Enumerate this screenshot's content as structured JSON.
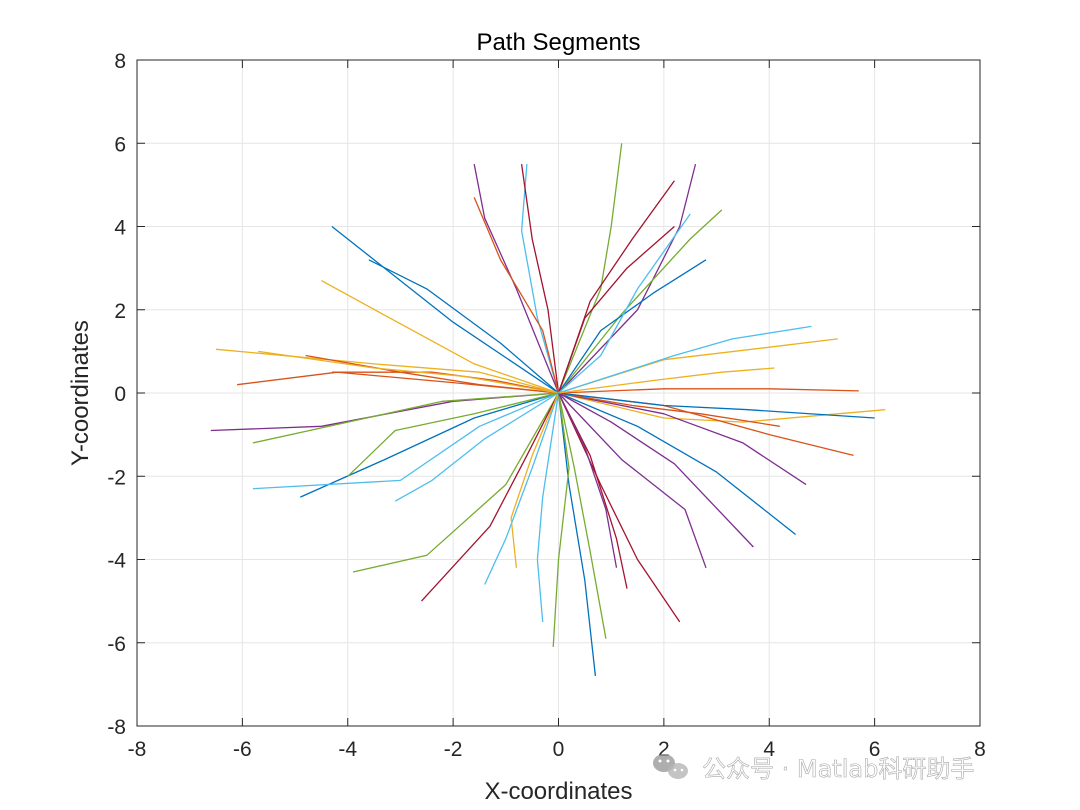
{
  "watermark": "公众号 · Matlab科研助手",
  "chart_data": {
    "type": "line",
    "title": "Path Segments",
    "xlabel": "X-coordinates",
    "ylabel": "Y-coordinates",
    "xlim": [
      -8,
      8
    ],
    "ylim": [
      -8,
      8
    ],
    "xticks": [
      "-8",
      "-6",
      "-4",
      "-2",
      "0",
      "2",
      "4",
      "6",
      "8"
    ],
    "yticks": [
      "-8",
      "-6",
      "-4",
      "-2",
      "0",
      "2",
      "4",
      "6",
      "8"
    ],
    "grid": true,
    "legend": "none",
    "colors": [
      "#0072bd",
      "#d95319",
      "#edb120",
      "#7e2f8e",
      "#77ac30",
      "#4dbeee",
      "#a2142f"
    ],
    "series": [
      {
        "x": [
          0,
          -2,
          -4.3
        ],
        "y": [
          0,
          1.7,
          4
        ]
      },
      {
        "x": [
          0,
          -1.2,
          -2.4,
          -4.3
        ],
        "y": [
          0,
          0.3,
          0.5,
          0.5
        ]
      },
      {
        "x": [
          0,
          -1.5,
          -3.5,
          -6.5
        ],
        "y": [
          0,
          0.5,
          0.7,
          1.05
        ]
      },
      {
        "x": [
          0,
          -2,
          -4.5,
          -6.6
        ],
        "y": [
          0,
          -0.2,
          -0.8,
          -0.9
        ]
      },
      {
        "x": [
          0,
          -1,
          -2.5,
          -3.9
        ],
        "y": [
          0,
          -2.2,
          -3.9,
          -4.3
        ]
      },
      {
        "x": [
          0,
          -0.5,
          -1,
          -1.4
        ],
        "y": [
          0,
          -1.8,
          -3.5,
          -4.6
        ]
      },
      {
        "x": [
          0,
          0.8,
          1.5,
          2.3
        ],
        "y": [
          0,
          -2.2,
          -4,
          -5.5
        ]
      },
      {
        "x": [
          0,
          1.5,
          3,
          4.5
        ],
        "y": [
          0,
          -0.8,
          -1.9,
          -3.4
        ]
      },
      {
        "x": [
          0,
          2,
          4,
          5.7
        ],
        "y": [
          0,
          0.1,
          0.1,
          0.05
        ]
      },
      {
        "x": [
          0,
          2,
          4,
          5.3
        ],
        "y": [
          0,
          0.8,
          1.1,
          1.3
        ]
      },
      {
        "x": [
          0,
          1.5,
          2.3,
          2.6
        ],
        "y": [
          0,
          2,
          4,
          5.5
        ]
      },
      {
        "x": [
          0,
          0.8,
          1,
          1.2
        ],
        "y": [
          0,
          2.5,
          4,
          6
        ]
      },
      {
        "x": [
          0,
          -0.4,
          -0.7,
          -0.6
        ],
        "y": [
          0,
          1.8,
          3.9,
          5.5
        ]
      },
      {
        "x": [
          0,
          0.6,
          1.1,
          1.3
        ],
        "y": [
          0,
          -1.5,
          -3.5,
          -4.7
        ]
      },
      {
        "x": [
          0,
          -1.6,
          -3.3,
          -4.9
        ],
        "y": [
          0,
          -0.6,
          -1.6,
          -2.5
        ]
      },
      {
        "x": [
          0,
          -2,
          -4.2,
          -6.1
        ],
        "y": [
          0,
          0.25,
          0.5,
          0.2
        ]
      },
      {
        "x": [
          0,
          2,
          3.5,
          6.2
        ],
        "y": [
          0,
          -0.6,
          -0.7,
          -0.4
        ]
      },
      {
        "x": [
          0,
          -0.8,
          -1.4,
          -1.6
        ],
        "y": [
          0,
          2.5,
          4.2,
          5.5
        ]
      },
      {
        "x": [
          0,
          1.2,
          2.5,
          3.1
        ],
        "y": [
          0,
          1.9,
          3.7,
          4.4
        ]
      },
      {
        "x": [
          0,
          -1.5,
          -3,
          -5.8
        ],
        "y": [
          0,
          -0.8,
          -2.1,
          -2.3
        ]
      },
      {
        "x": [
          0,
          -0.6,
          -1.3,
          -2.6
        ],
        "y": [
          0,
          -1.5,
          -3.2,
          -5
        ]
      },
      {
        "x": [
          0,
          0.8,
          1.8,
          2.8
        ],
        "y": [
          0,
          1.5,
          2.4,
          3.2
        ]
      },
      {
        "x": [
          0,
          -1.5,
          -3,
          -4.8
        ],
        "y": [
          0,
          0.2,
          0.5,
          0.9
        ]
      },
      {
        "x": [
          0,
          -1.8,
          -3.5,
          -5.7
        ],
        "y": [
          0,
          0.4,
          0.6,
          1
        ]
      },
      {
        "x": [
          0,
          2,
          3.5,
          4.7
        ],
        "y": [
          0,
          -0.5,
          -1.2,
          -2.2
        ]
      },
      {
        "x": [
          0,
          0.3,
          0.6,
          0.9
        ],
        "y": [
          0,
          -1.8,
          -3.8,
          -5.9
        ]
      },
      {
        "x": [
          0,
          -0.3,
          -0.4,
          -0.3
        ],
        "y": [
          0,
          -2.5,
          -4,
          -5.5
        ]
      },
      {
        "x": [
          0,
          0.5,
          1.3,
          2.2
        ],
        "y": [
          0,
          1.8,
          3,
          4
        ]
      },
      {
        "x": [
          0,
          -1.1,
          -2.5,
          -3.6
        ],
        "y": [
          0,
          1.2,
          2.5,
          3.2
        ]
      },
      {
        "x": [
          0,
          2,
          4,
          5.6
        ],
        "y": [
          0,
          -0.3,
          -1,
          -1.5
        ]
      },
      {
        "x": [
          0,
          -0.5,
          -0.9,
          -0.8
        ],
        "y": [
          0,
          -1.5,
          -3,
          -4.2
        ]
      },
      {
        "x": [
          0,
          1.2,
          2.4,
          2.8
        ],
        "y": [
          0,
          -1.6,
          -2.8,
          -4.2
        ]
      },
      {
        "x": [
          0,
          -2.2,
          -4,
          -5.8
        ],
        "y": [
          0,
          -0.2,
          -0.7,
          -1.2
        ]
      },
      {
        "x": [
          0,
          2.2,
          3.3,
          4.8
        ],
        "y": [
          0,
          0.9,
          1.3,
          1.6
        ]
      },
      {
        "x": [
          0,
          -0.2,
          -0.5,
          -0.7
        ],
        "y": [
          0,
          2,
          3.7,
          5.5
        ]
      },
      {
        "x": [
          0,
          0.2,
          0.5,
          0.7
        ],
        "y": [
          0,
          -2.2,
          -4.5,
          -6.8
        ]
      },
      {
        "x": [
          0,
          1.4,
          2.7,
          4.2
        ],
        "y": [
          0,
          -0.3,
          -0.5,
          -0.8
        ]
      },
      {
        "x": [
          0,
          -1.6,
          -3.2,
          -4.5
        ],
        "y": [
          0,
          0.7,
          1.8,
          2.7
        ]
      },
      {
        "x": [
          0,
          1,
          2.2,
          3.7
        ],
        "y": [
          0,
          -0.7,
          -1.7,
          -3.7
        ]
      },
      {
        "x": [
          0,
          0.2,
          0,
          -0.1
        ],
        "y": [
          0,
          -1.8,
          -4,
          -6.1
        ]
      },
      {
        "x": [
          0,
          -1.4,
          -2.4,
          -3.1
        ],
        "y": [
          0,
          -1.1,
          -2.1,
          -2.6
        ]
      },
      {
        "x": [
          0,
          0.6,
          1.4,
          2.2
        ],
        "y": [
          0,
          2.2,
          3.7,
          5.1
        ]
      },
      {
        "x": [
          0,
          2,
          3.6,
          6
        ],
        "y": [
          0,
          -0.3,
          -0.4,
          -0.6
        ]
      },
      {
        "x": [
          0,
          -0.3,
          -1.1,
          -1.6
        ],
        "y": [
          0,
          1.5,
          3.2,
          4.7
        ]
      },
      {
        "x": [
          0,
          1.8,
          3.1,
          4.1
        ],
        "y": [
          0,
          0.3,
          0.5,
          0.6
        ]
      },
      {
        "x": [
          0,
          0.5,
          0.9,
          1.1
        ],
        "y": [
          0,
          -1.3,
          -2.8,
          -4.2
        ]
      },
      {
        "x": [
          0,
          -1.6,
          -3.1,
          -4
        ],
        "y": [
          0,
          -0.5,
          -0.9,
          -2
        ]
      },
      {
        "x": [
          0,
          0.8,
          1.5,
          2.5
        ],
        "y": [
          0,
          0.9,
          2.5,
          4.3
        ]
      }
    ]
  }
}
